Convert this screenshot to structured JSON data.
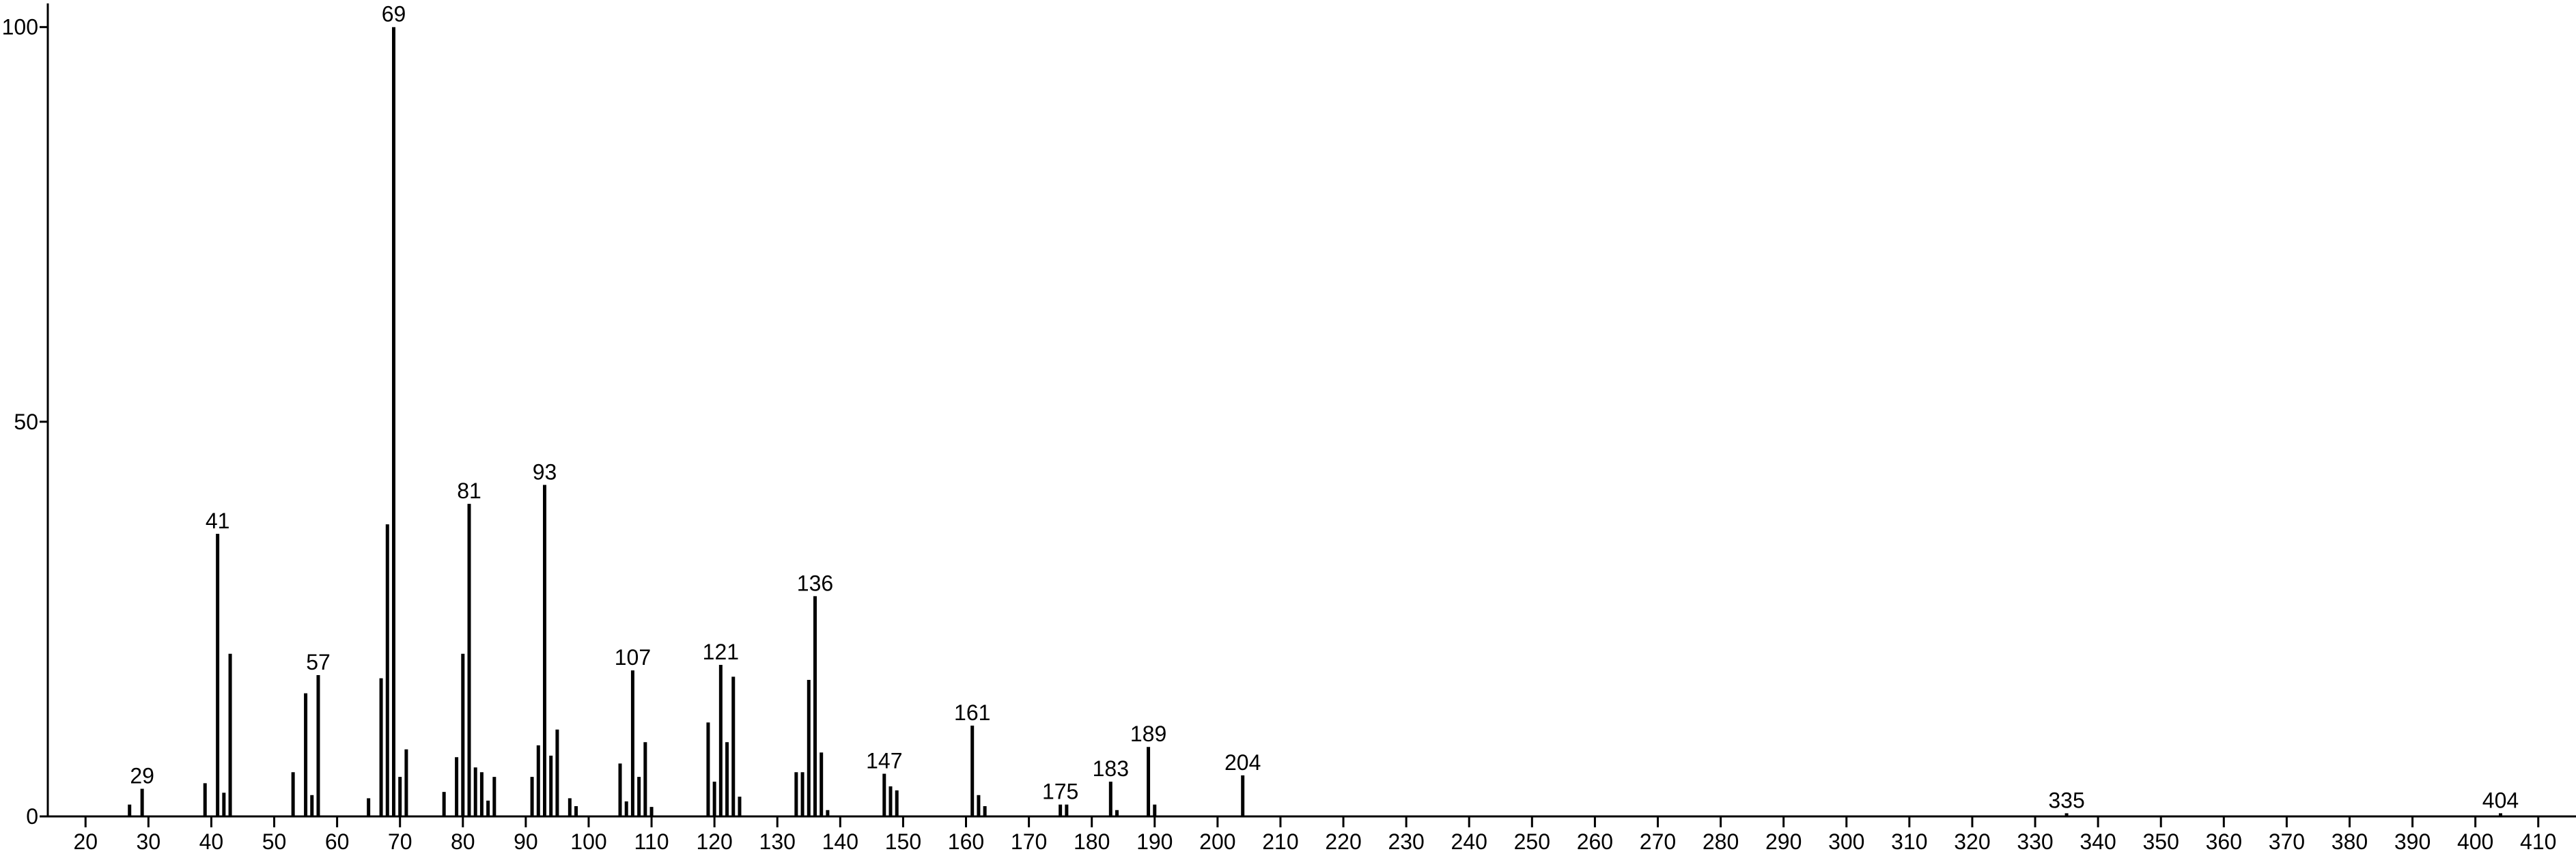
{
  "chart_data": {
    "type": "spectrum",
    "x": [
      27,
      29,
      39,
      41,
      42,
      43,
      53,
      55,
      56,
      57,
      65,
      67,
      68,
      69,
      70,
      71,
      77,
      79,
      80,
      81,
      82,
      83,
      84,
      85,
      91,
      92,
      93,
      94,
      95,
      97,
      98,
      105,
      106,
      107,
      108,
      109,
      110,
      119,
      120,
      121,
      122,
      123,
      124,
      133,
      134,
      135,
      136,
      137,
      138,
      147,
      148,
      149,
      161,
      162,
      163,
      175,
      176,
      183,
      184,
      189,
      190,
      204,
      335,
      404
    ],
    "values": [
      1.5,
      3.5,
      4.2,
      35.8,
      3,
      20.6,
      5.6,
      15.6,
      2.7,
      17.9,
      2.3,
      17.5,
      37,
      100,
      5,
      8.5,
      3.1,
      7.5,
      20.6,
      39.6,
      6.2,
      5.6,
      2,
      5,
      5,
      9,
      42,
      7.7,
      11,
      2.3,
      1.3,
      6.7,
      1.9,
      18.5,
      5,
      9.4,
      1.2,
      11.9,
      4.4,
      19.2,
      9.4,
      17.7,
      2.5,
      5.6,
      5.6,
      17.3,
      27.9,
      8.1,
      0.8,
      5.4,
      3.8,
      3.3,
      11.5,
      2.7,
      1.3,
      1.5,
      1.5,
      4.4,
      0.8,
      8.8,
      1.5,
      5.2,
      0.4,
      0.4
    ],
    "peak_labels": [
      29,
      41,
      57,
      69,
      81,
      93,
      107,
      121,
      136,
      147,
      161,
      175,
      183,
      189,
      204,
      335,
      404
    ],
    "color": "#000000",
    "xlim": [
      14,
      416
    ],
    "ylim": [
      0,
      103
    ],
    "xticks": [
      20,
      30,
      40,
      50,
      60,
      70,
      80,
      90,
      100,
      110,
      120,
      130,
      140,
      150,
      160,
      170,
      180,
      190,
      200,
      210,
      220,
      230,
      240,
      250,
      260,
      270,
      280,
      290,
      300,
      310,
      320,
      330,
      340,
      350,
      360,
      370,
      380,
      390,
      400,
      410
    ],
    "yticks": [
      0,
      50,
      100
    ]
  }
}
